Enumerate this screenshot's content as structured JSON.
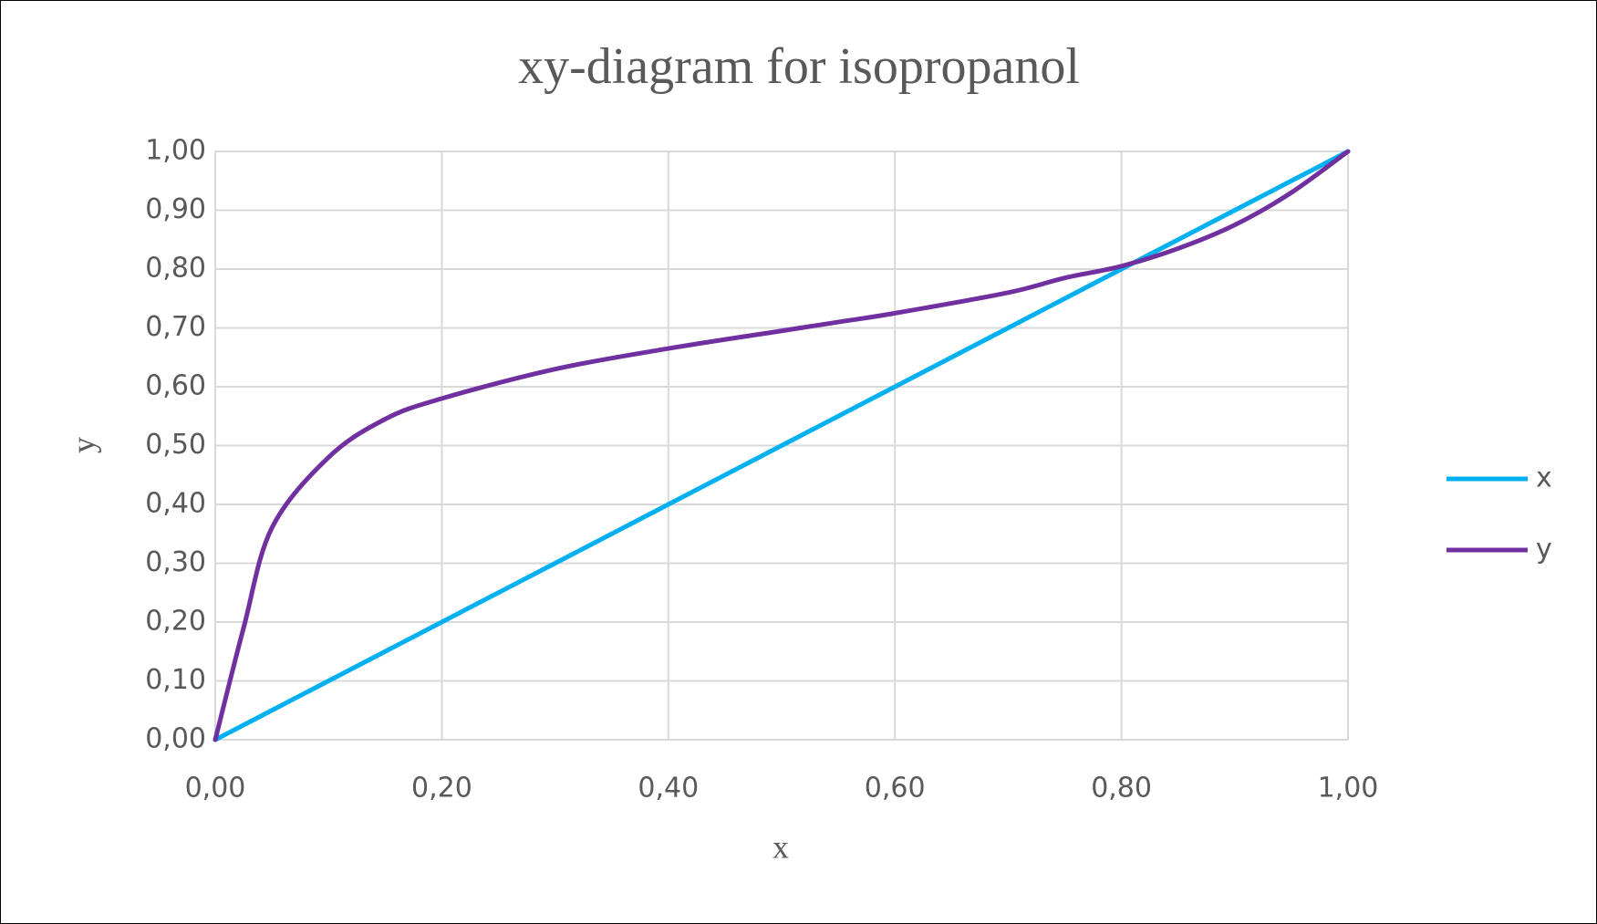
{
  "chart_data": {
    "type": "line",
    "title": "xy-diagram for isopropanol",
    "x_label": "x",
    "y_label": "y",
    "x": [
      0,
      0.025,
      0.05,
      0.1,
      0.15,
      0.2,
      0.3,
      0.4,
      0.5,
      0.55,
      0.6,
      0.7,
      0.75,
      0.8,
      0.85,
      0.9,
      0.95,
      1
    ],
    "series": [
      {
        "name": "x",
        "color": "#00b0f0",
        "values": [
          0,
          0.025,
          0.05,
          0.1,
          0.15,
          0.2,
          0.3,
          0.4,
          0.5,
          0.55,
          0.6,
          0.7,
          0.75,
          0.8,
          0.85,
          0.9,
          0.95,
          1
        ]
      },
      {
        "name": "y",
        "color": "#7030a0",
        "values": [
          0,
          0.19,
          0.36,
          0.48,
          0.545,
          0.58,
          0.63,
          0.665,
          0.695,
          0.71,
          0.725,
          0.76,
          0.785,
          0.805,
          0.835,
          0.875,
          0.93,
          1
        ]
      }
    ],
    "xlim": [
      0,
      1
    ],
    "ylim": [
      0,
      1
    ],
    "xticks": [
      {
        "value": 0,
        "label": "0,00"
      },
      {
        "value": 0.2,
        "label": "0,20"
      },
      {
        "value": 0.4,
        "label": "0,40"
      },
      {
        "value": 0.6,
        "label": "0,60"
      },
      {
        "value": 0.8,
        "label": "0,80"
      },
      {
        "value": 1,
        "label": "1,00"
      }
    ],
    "yticks": [
      {
        "value": 0,
        "label": "0,00"
      },
      {
        "value": 0.1,
        "label": "0,10"
      },
      {
        "value": 0.2,
        "label": "0,20"
      },
      {
        "value": 0.3,
        "label": "0,30"
      },
      {
        "value": 0.4,
        "label": "0,40"
      },
      {
        "value": 0.5,
        "label": "0,50"
      },
      {
        "value": 0.6,
        "label": "0,60"
      },
      {
        "value": 0.7,
        "label": "0,70"
      },
      {
        "value": 0.8,
        "label": "0,80"
      },
      {
        "value": 0.9,
        "label": "0,90"
      },
      {
        "value": 1,
        "label": "1,00"
      }
    ],
    "grid": true,
    "legend": "right"
  }
}
